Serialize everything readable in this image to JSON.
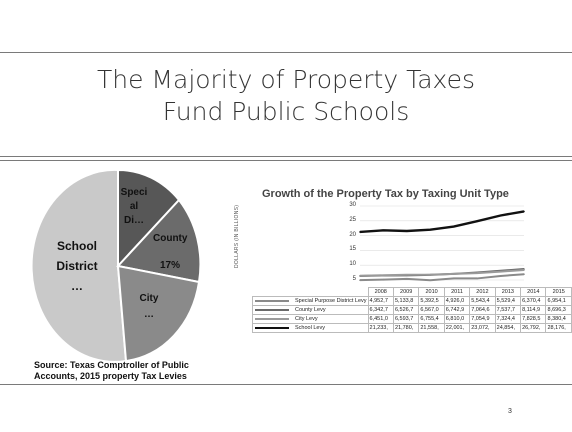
{
  "slide": {
    "title_lines": [
      "The Majority of Property Taxes",
      "Fund Public Schools"
    ],
    "source_lines": [
      "Source: Texas Comptroller of Public",
      "Accounts, 2015 property Tax Levies"
    ],
    "page_number": "3"
  },
  "pie": {
    "labels": {
      "school": [
        "School",
        "District",
        "…"
      ],
      "special": [
        "Speci",
        "al",
        "Di…"
      ],
      "county": "County",
      "county_pct": "17%",
      "city": [
        "City",
        "…"
      ]
    }
  },
  "chart_data": {
    "type": "line",
    "title": "Growth of the Property Tax by Taxing Unit Type",
    "ylabel": "DOLLARS (IN BILLIONS)",
    "x": [
      "2008",
      "2009",
      "2010",
      "2011",
      "2012",
      "2013",
      "2014",
      "2015"
    ],
    "yticks": [
      "30",
      "25",
      "20",
      "15",
      "10",
      "5"
    ],
    "ylim": [
      5,
      30
    ],
    "series": [
      {
        "name": "Special Purpose District Levy",
        "color": "#8a8a8a",
        "values": [
          4.9527,
          5.1338,
          5.3925,
          4.926,
          5.5434,
          5.5294,
          6.3704,
          6.9541
        ],
        "labels": [
          "4,952,7",
          "5,133,8",
          "5,392,5",
          "4,926,0",
          "5,543,4",
          "5,529,4",
          "6,370,4",
          "6,954,1"
        ]
      },
      {
        "name": "County Levy",
        "color": "#6a6a6a",
        "values": [
          6.3427,
          6.5267,
          6.567,
          6.7429,
          7.0646,
          7.5377,
          8.1149,
          8.6963
        ],
        "labels": [
          "6,342,7",
          "6,526,7",
          "6,567,0",
          "6,742,9",
          "7,064,6",
          "7,537,7",
          "8,114,9",
          "8,696,3"
        ]
      },
      {
        "name": "City Levy",
        "color": "#9a9a9a",
        "values": [
          6.451,
          6.5937,
          6.7554,
          6.81,
          7.0549,
          7.3244,
          7.8285,
          8.3804
        ],
        "labels": [
          "6,451,0",
          "6,593,7",
          "6,755,4",
          "6,810,0",
          "7,054,9",
          "7,324,4",
          "7,828,5",
          "8,380,4"
        ]
      },
      {
        "name": "School Levy",
        "color": "#111111",
        "values": [
          21.233,
          21.78,
          21.558,
          22.001,
          23.072,
          24.854,
          26.792,
          28.176
        ],
        "labels": [
          "21,233,",
          "21,780,",
          "21,558,",
          "22,001,",
          "23,072,",
          "24,854,",
          "26,792,",
          "28,176,"
        ]
      }
    ]
  }
}
